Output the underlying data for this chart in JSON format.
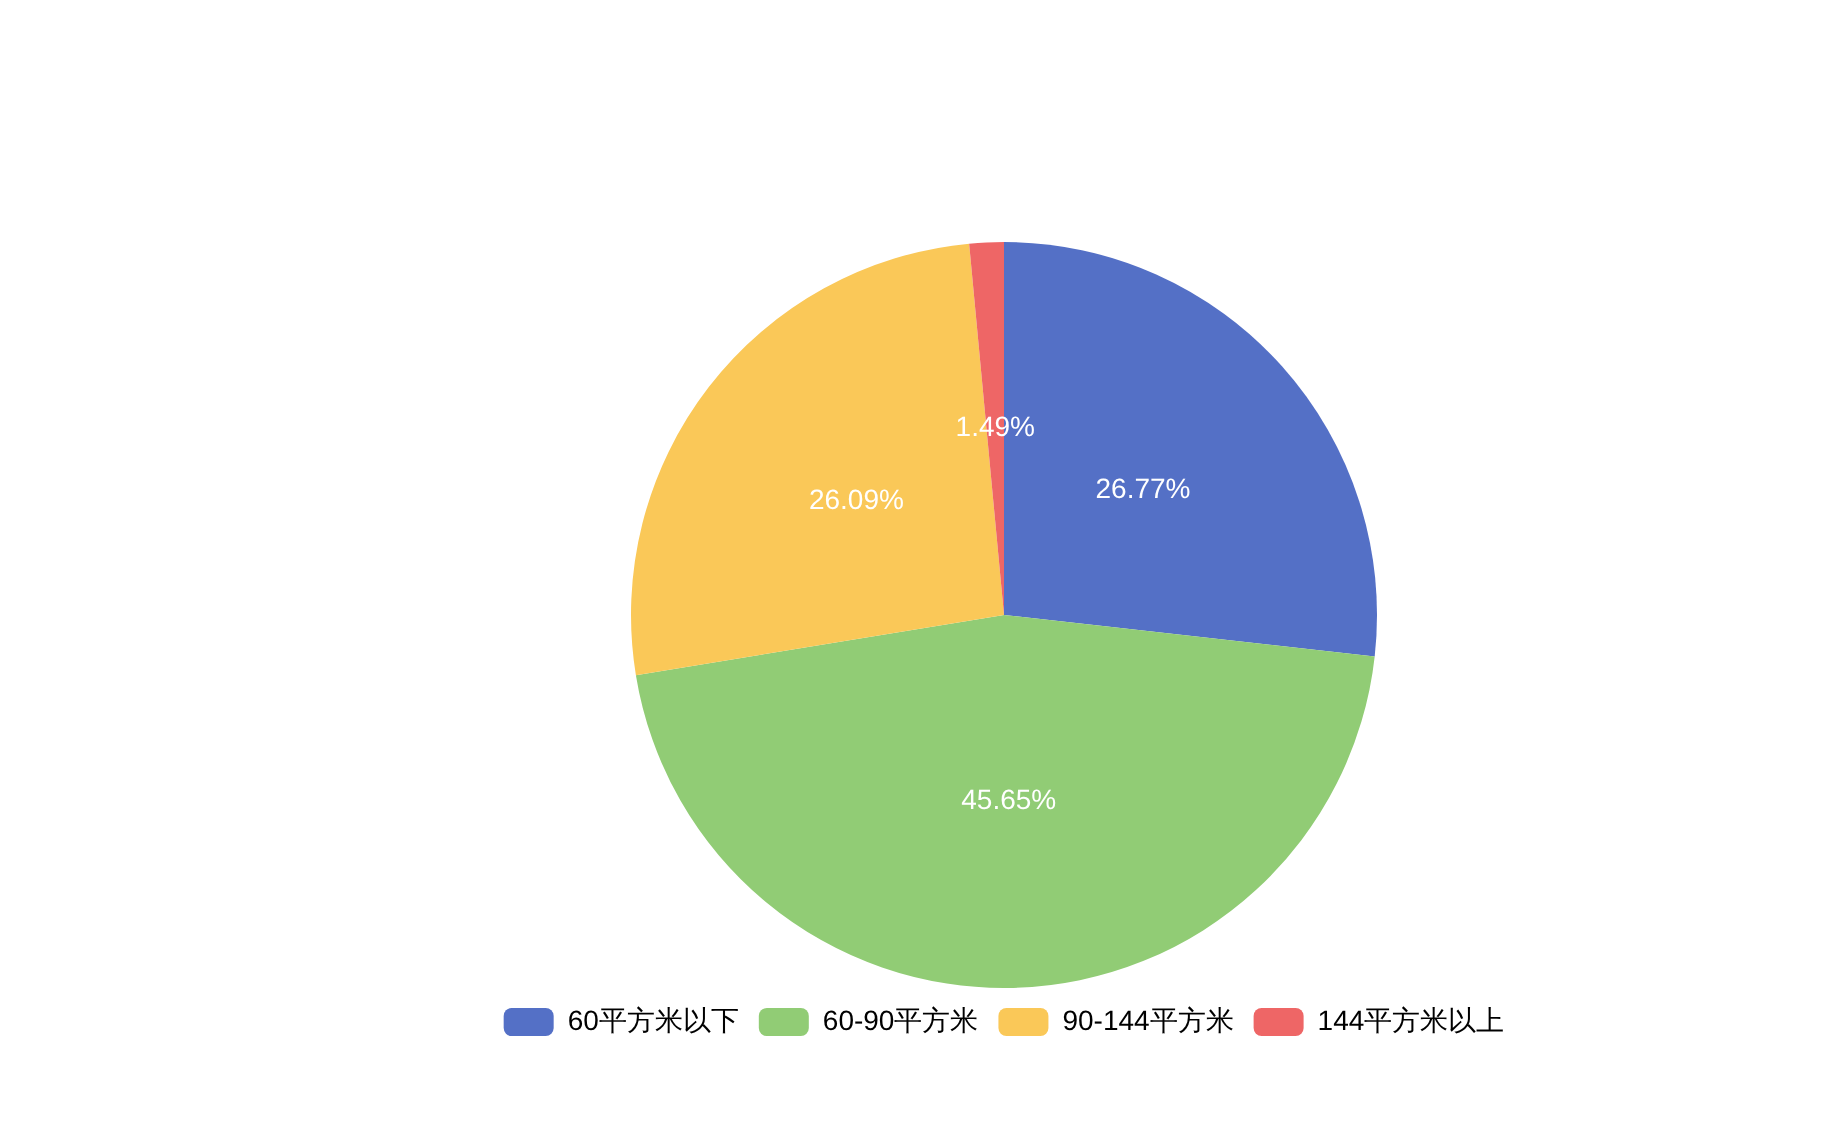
{
  "chart_data": {
    "type": "pie",
    "categories": [
      "60平方米以下",
      "60-90平方米",
      "90-144平方米",
      "144平方米以上"
    ],
    "values": [
      26.77,
      45.65,
      26.09,
      1.49
    ],
    "colors": [
      "#5470c6",
      "#91cc75",
      "#fac858",
      "#ee6666"
    ],
    "value_labels": [
      "26.77%",
      "45.65%",
      "26.09%",
      "1.49%"
    ],
    "legend": "bottom"
  }
}
